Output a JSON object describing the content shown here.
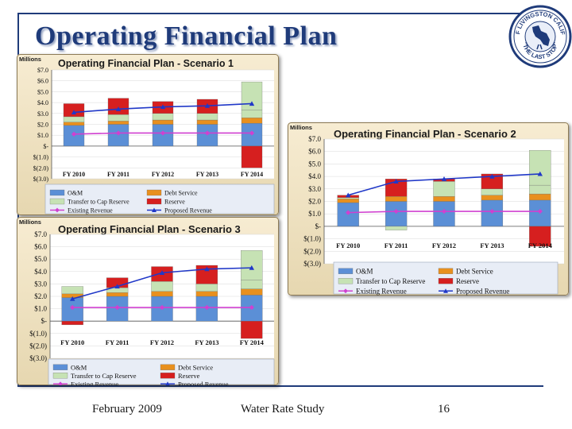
{
  "slide": {
    "title": "Operating Financial Plan",
    "footer_date": "February 2009",
    "footer_center": "Water Rate Study",
    "page_number": "16",
    "seal_text": "CITY OF LIVINGSTON CALIFORNIA",
    "seal_motto": "\"THE LAST STOP\""
  },
  "colors": {
    "om": "#5b8fd6",
    "debt_service": "#e8901e",
    "transfer": "#c6e2b4",
    "reserve": "#d61f1f",
    "existing_revenue": "#d040d0",
    "proposed_revenue": "#2038c8",
    "accent": "#1f3b7a"
  },
  "legend_labels": {
    "om": "O&M",
    "debt_service": "Debt Service",
    "transfer": "Transfer to Cap Reserve",
    "reserve": "Reserve",
    "existing_revenue": "Existing Revenue",
    "proposed_revenue": "Proposed Revenue"
  },
  "chart_data": [
    {
      "type": "bar",
      "title": "Operating Financial Plan - Scenario 1",
      "unit_label": "Millions",
      "categories": [
        "FY 2010",
        "FY 2011",
        "FY 2012",
        "FY 2013",
        "FY 2014"
      ],
      "ylim": [
        -3,
        7
      ],
      "y_ticks": [
        7,
        6,
        5,
        4,
        3,
        2,
        1,
        0,
        -1,
        -2,
        -3
      ],
      "y_tick_labels": [
        "$7.0",
        "$6.0",
        "$5.0",
        "$4.0",
        "$3.0",
        "$2.0",
        "$1.0",
        "$-",
        "$(1.0)",
        "$(2.0)",
        "$(3.0)"
      ],
      "stacked": true,
      "series": [
        {
          "name": "O&M",
          "key": "om",
          "values": [
            1.9,
            2.0,
            2.0,
            2.0,
            2.1
          ]
        },
        {
          "name": "Debt Service",
          "key": "debt_service",
          "values": [
            0.3,
            0.3,
            0.4,
            0.4,
            0.5
          ]
        },
        {
          "name": "Transfer to Cap Reserve",
          "key": "transfer",
          "values": [
            0.5,
            0.6,
            0.6,
            0.6,
            0.7
          ]
        },
        {
          "name": "Reserve",
          "key": "reserve",
          "values": [
            1.2,
            1.5,
            1.1,
            1.3,
            -2.0
          ]
        }
      ],
      "extra_segments": [
        {
          "name": "Transfer to Cap Reserve",
          "key": "transfer",
          "index": 4,
          "bottom": 3.3,
          "top": 5.9
        }
      ],
      "lines": [
        {
          "name": "Existing Revenue",
          "key": "existing_revenue",
          "values": [
            1.1,
            1.2,
            1.2,
            1.2,
            1.2
          ]
        },
        {
          "name": "Proposed Revenue",
          "key": "proposed_revenue",
          "values": [
            3.1,
            3.4,
            3.6,
            3.7,
            3.9
          ]
        }
      ]
    },
    {
      "type": "bar",
      "title": "Operating Financial Plan - Scenario 2",
      "unit_label": "Millions",
      "categories": [
        "FY 2010",
        "FY 2011",
        "FY 2012",
        "FY 2013",
        "FY 2014"
      ],
      "ylim": [
        -3,
        7
      ],
      "y_ticks": [
        7,
        6,
        5,
        4,
        3,
        2,
        1,
        0,
        -1,
        -2,
        -3
      ],
      "y_tick_labels": [
        "$7.0",
        "$6.0",
        "$5.0",
        "$4.0",
        "$3.0",
        "$2.0",
        "$1.0",
        "$-",
        "$(1.0)",
        "$(2.0)",
        "$(3.0)"
      ],
      "stacked": true,
      "series": [
        {
          "name": "O&M",
          "key": "om",
          "values": [
            1.9,
            2.0,
            2.0,
            2.1,
            2.1
          ]
        },
        {
          "name": "Debt Service",
          "key": "debt_service",
          "values": [
            0.3,
            0.4,
            0.4,
            0.4,
            0.5
          ]
        },
        {
          "name": "Transfer to Cap Reserve",
          "key": "transfer",
          "values": [
            0.1,
            -0.3,
            1.2,
            0.5,
            0.7
          ]
        },
        {
          "name": "Reserve",
          "key": "reserve",
          "values": [
            0.2,
            1.4,
            0.2,
            1.2,
            -1.6
          ]
        }
      ],
      "extra_segments": [
        {
          "name": "Transfer to Cap Reserve",
          "key": "transfer",
          "index": 4,
          "bottom": 3.3,
          "top": 6.1
        }
      ],
      "lines": [
        {
          "name": "Existing Revenue",
          "key": "existing_revenue",
          "values": [
            1.1,
            1.2,
            1.2,
            1.2,
            1.2
          ]
        },
        {
          "name": "Proposed Revenue",
          "key": "proposed_revenue",
          "values": [
            2.5,
            3.6,
            3.8,
            4.0,
            4.2
          ]
        }
      ]
    },
    {
      "type": "bar",
      "title": "Operating Financial Plan - Scenario 3",
      "unit_label": "Millions",
      "categories": [
        "FY 2010",
        "FY 2011",
        "FY 2012",
        "FY 2013",
        "FY 2014"
      ],
      "ylim": [
        -3,
        7
      ],
      "y_ticks": [
        7,
        6,
        5,
        4,
        3,
        2,
        1,
        0,
        -1,
        -2,
        -3
      ],
      "y_tick_labels": [
        "$7.0",
        "$6.0",
        "$5.0",
        "$4.0",
        "$3.0",
        "$2.0",
        "$1.0",
        "$-",
        "$(1.0)",
        "$(2.0)",
        "$(3.0)"
      ],
      "stacked": true,
      "series": [
        {
          "name": "O&M",
          "key": "om",
          "values": [
            1.9,
            2.0,
            2.0,
            2.0,
            2.1
          ]
        },
        {
          "name": "Debt Service",
          "key": "debt_service",
          "values": [
            0.3,
            0.3,
            0.4,
            0.4,
            0.5
          ]
        },
        {
          "name": "Transfer to Cap Reserve",
          "key": "transfer",
          "values": [
            0.6,
            0.4,
            0.8,
            0.6,
            0.7
          ]
        },
        {
          "name": "Reserve",
          "key": "reserve",
          "values": [
            -0.3,
            0.8,
            1.2,
            1.5,
            -1.4
          ]
        }
      ],
      "extra_segments": [
        {
          "name": "Transfer to Cap Reserve",
          "key": "transfer",
          "index": 4,
          "bottom": 3.3,
          "top": 5.7
        }
      ],
      "lines": [
        {
          "name": "Existing Revenue",
          "key": "existing_revenue",
          "values": [
            1.1,
            1.1,
            1.1,
            1.1,
            1.1
          ]
        },
        {
          "name": "Proposed Revenue",
          "key": "proposed_revenue",
          "values": [
            1.8,
            2.8,
            3.9,
            4.2,
            4.3
          ]
        }
      ]
    }
  ]
}
